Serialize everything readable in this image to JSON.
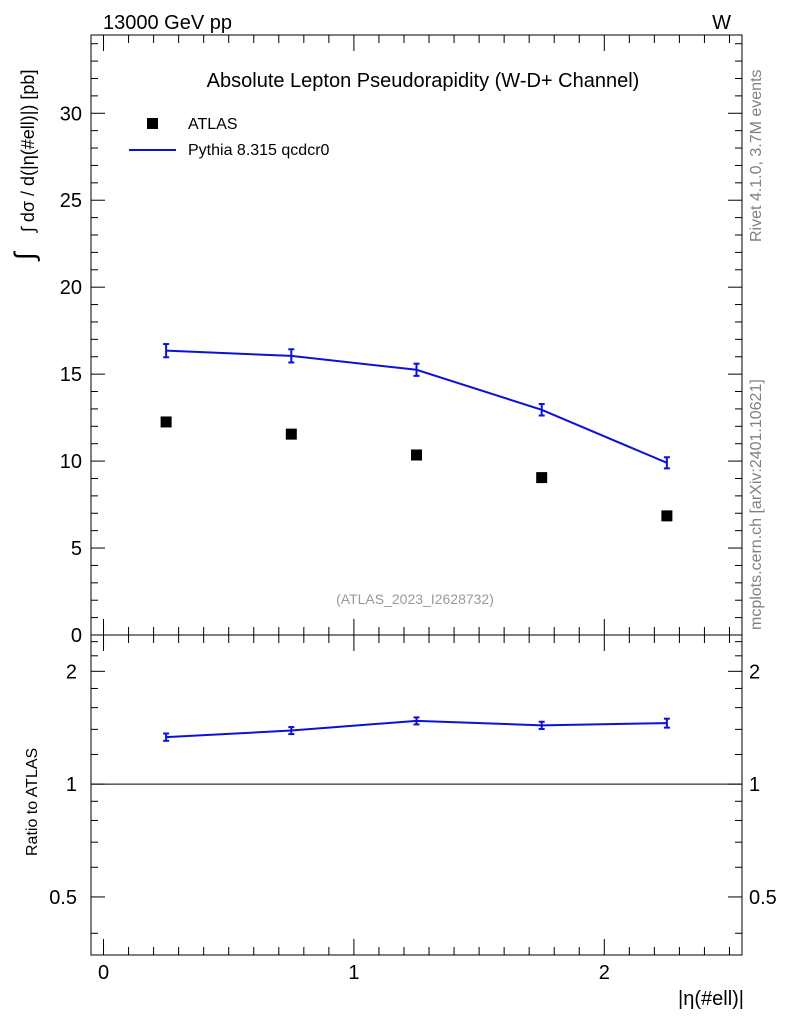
{
  "header": {
    "left": "13000 GeV pp",
    "right": "W"
  },
  "side_labels": {
    "rivet": "Rivet 4.1.0,  3.7M events",
    "mcplots": "mcplots.cern.ch [arXiv:2401.10621]"
  },
  "colors": {
    "mc": "#0b12d6",
    "data": "#000000",
    "watermark": "#999999",
    "side_text": "#808080"
  },
  "chart_data": [
    {
      "type": "line",
      "title": "Absolute Lepton Pseudorapidity (W-D+ Channel)",
      "xlabel": "|η(#ell)|",
      "ylabel": "∫ dσ / d(|η(#ell)|) [pb]",
      "watermark": "(ATLAS_2023_I2628732)",
      "xlim": [
        -0.05,
        2.55
      ],
      "ylim": [
        0,
        34.5
      ],
      "yticks": [
        0,
        5,
        10,
        15,
        20,
        25,
        30
      ],
      "ytick_labels": [
        "0",
        "5",
        "10",
        "15",
        "20",
        "25",
        "30"
      ],
      "legend": {
        "placement": "top-left",
        "entries": [
          "ATLAS",
          "Pythia 8.315 qcdcr0"
        ]
      },
      "series": [
        {
          "name": "ATLAS",
          "style": "markers",
          "x": [
            0.25,
            0.75,
            1.25,
            1.75,
            2.25
          ],
          "y": [
            12.25,
            11.55,
            10.35,
            9.05,
            6.85
          ]
        },
        {
          "name": "Pythia 8.315 qcdcr0",
          "style": "line",
          "x": [
            0.25,
            0.75,
            1.25,
            1.75,
            2.25
          ],
          "y": [
            16.35,
            16.05,
            15.25,
            12.95,
            9.9
          ],
          "err": [
            0.38,
            0.38,
            0.35,
            0.33,
            0.32
          ]
        }
      ]
    },
    {
      "type": "line",
      "ylabel": "Ratio to ATLAS",
      "xlabel": "|η(#ell)|",
      "yscale": "log",
      "xlim": [
        -0.05,
        2.55
      ],
      "ylim": [
        0.35,
        2.5
      ],
      "yticks": [
        0.5,
        1,
        2
      ],
      "ytick_labels": [
        "0.5",
        "1",
        "2"
      ],
      "xticks": [
        0,
        1,
        2
      ],
      "xtick_labels": [
        "0",
        "1",
        "2"
      ],
      "reference_line": 1,
      "series": [
        {
          "name": "Pythia 8.315 qcdcr0 / ATLAS",
          "style": "line",
          "x": [
            0.25,
            0.75,
            1.25,
            1.75,
            2.25
          ],
          "y": [
            1.335,
            1.39,
            1.475,
            1.435,
            1.455
          ],
          "err": [
            0.03,
            0.03,
            0.032,
            0.032,
            0.04
          ]
        }
      ]
    }
  ]
}
